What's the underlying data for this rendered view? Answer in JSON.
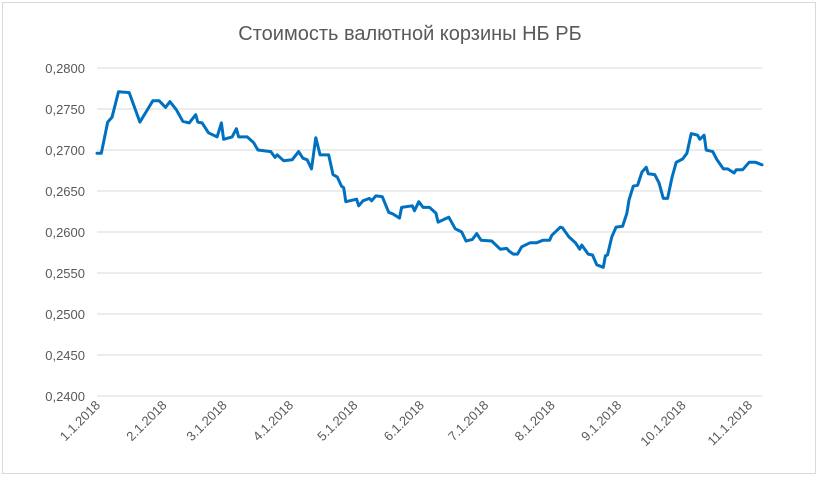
{
  "chart_data": {
    "type": "line",
    "title": "Стоимость валютной корзины НБ РБ",
    "xlabel": "",
    "ylabel": "",
    "ylim": [
      0.24,
      0.28
    ],
    "yticks": [
      "0,2400",
      "0,2450",
      "0,2500",
      "0,2550",
      "0,2600",
      "0,2650",
      "0,2700",
      "0,2750",
      "0,2800"
    ],
    "xticks": [
      {
        "date": "2018-01-01",
        "label": "1.1.2018"
      },
      {
        "date": "2018-02-01",
        "label": "2.1.2018"
      },
      {
        "date": "2018-03-01",
        "label": "3.1.2018"
      },
      {
        "date": "2018-04-01",
        "label": "4.1.2018"
      },
      {
        "date": "2018-05-01",
        "label": "5.1.2018"
      },
      {
        "date": "2018-06-01",
        "label": "6.1.2018"
      },
      {
        "date": "2018-07-01",
        "label": "7.1.2018"
      },
      {
        "date": "2018-08-01",
        "label": "8.1.2018"
      },
      {
        "date": "2018-09-01",
        "label": "9.1.2018"
      },
      {
        "date": "2018-10-01",
        "label": "10.1.2018"
      },
      {
        "date": "2018-11-01",
        "label": "11.1.2018"
      }
    ],
    "grid": true,
    "legend": "none",
    "color": "#0070C0",
    "series": [
      {
        "x": [
          "2018-01-01",
          "2018-01-03",
          "2018-01-06",
          "2018-01-08",
          "2018-01-11",
          "2018-01-16",
          "2018-01-21",
          "2018-01-27",
          "2018-01-30",
          "2018-02-02",
          "2018-02-04",
          "2018-02-07",
          "2018-02-10",
          "2018-02-13",
          "2018-02-16",
          "2018-02-17",
          "2018-02-19",
          "2018-02-22",
          "2018-02-26",
          "2018-02-28",
          "2018-03-01",
          "2018-03-05",
          "2018-03-07",
          "2018-03-08",
          "2018-03-12",
          "2018-03-15",
          "2018-03-17",
          "2018-03-23",
          "2018-03-25",
          "2018-03-26",
          "2018-03-29",
          "2018-04-02",
          "2018-04-05",
          "2018-04-07",
          "2018-04-09",
          "2018-04-11",
          "2018-04-13",
          "2018-04-15",
          "2018-04-19",
          "2018-04-21",
          "2018-04-23",
          "2018-04-25",
          "2018-04-26",
          "2018-04-27",
          "2018-05-02",
          "2018-05-03",
          "2018-05-05",
          "2018-05-08",
          "2018-05-09",
          "2018-05-11",
          "2018-05-14",
          "2018-05-17",
          "2018-05-19",
          "2018-05-22",
          "2018-05-23",
          "2018-05-28",
          "2018-05-29",
          "2018-05-31",
          "2018-06-02",
          "2018-06-05",
          "2018-06-08",
          "2018-06-09",
          "2018-06-13",
          "2018-06-14",
          "2018-06-17",
          "2018-06-20",
          "2018-06-22",
          "2018-06-25",
          "2018-06-27",
          "2018-06-29",
          "2018-07-04",
          "2018-07-08",
          "2018-07-11",
          "2018-07-12",
          "2018-07-14",
          "2018-07-16",
          "2018-07-18",
          "2018-07-22",
          "2018-07-25",
          "2018-07-28",
          "2018-07-31",
          "2018-08-01",
          "2018-08-05",
          "2018-08-06",
          "2018-08-09",
          "2018-08-12",
          "2018-08-14",
          "2018-08-15",
          "2018-08-18",
          "2018-08-20",
          "2018-08-22",
          "2018-08-25",
          "2018-08-26",
          "2018-08-27",
          "2018-08-29",
          "2018-08-31",
          "2018-09-03",
          "2018-09-05",
          "2018-09-06",
          "2018-09-08",
          "2018-09-10",
          "2018-09-12",
          "2018-09-14",
          "2018-09-15",
          "2018-09-18",
          "2018-09-20",
          "2018-09-22",
          "2018-09-24",
          "2018-09-26",
          "2018-09-28",
          "2018-10-01",
          "2018-10-03",
          "2018-10-05",
          "2018-10-08",
          "2018-10-09",
          "2018-10-11",
          "2018-10-12",
          "2018-10-15",
          "2018-10-17",
          "2018-10-20",
          "2018-10-22",
          "2018-10-25",
          "2018-10-26",
          "2018-10-29",
          "2018-11-01",
          "2018-11-04",
          "2018-11-07"
        ],
        "y": [
          0.2696,
          0.2696,
          0.2734,
          0.274,
          0.2771,
          0.277,
          0.2734,
          0.276,
          0.276,
          0.2752,
          0.2759,
          0.2749,
          0.2735,
          0.2733,
          0.2743,
          0.2734,
          0.2733,
          0.2721,
          0.2716,
          0.2733,
          0.2713,
          0.2716,
          0.2726,
          0.2716,
          0.2716,
          0.2709,
          0.27,
          0.2698,
          0.2691,
          0.2694,
          0.2687,
          0.2688,
          0.2698,
          0.269,
          0.2688,
          0.2677,
          0.2715,
          0.2694,
          0.2694,
          0.267,
          0.2667,
          0.2656,
          0.2654,
          0.2637,
          0.264,
          0.2632,
          0.2638,
          0.2641,
          0.2638,
          0.2644,
          0.2643,
          0.2624,
          0.2622,
          0.2617,
          0.263,
          0.2632,
          0.2626,
          0.2637,
          0.263,
          0.263,
          0.2623,
          0.2612,
          0.2617,
          0.2618,
          0.2604,
          0.26,
          0.2589,
          0.2591,
          0.2598,
          0.259,
          0.2589,
          0.2579,
          0.258,
          0.2577,
          0.2573,
          0.2573,
          0.2582,
          0.2587,
          0.2587,
          0.259,
          0.259,
          0.2596,
          0.2606,
          0.2605,
          0.2594,
          0.2587,
          0.2579,
          0.2584,
          0.2573,
          0.2572,
          0.256,
          0.2557,
          0.2571,
          0.2572,
          0.2594,
          0.2606,
          0.2607,
          0.2623,
          0.2639,
          0.2656,
          0.2657,
          0.2673,
          0.2679,
          0.2671,
          0.267,
          0.266,
          0.2641,
          0.2641,
          0.2666,
          0.2685,
          0.2689,
          0.2696,
          0.272,
          0.2718,
          0.2713,
          0.2718,
          0.27,
          0.2698,
          0.2688,
          0.2677,
          0.2677,
          0.2672,
          0.2676,
          0.2676,
          0.2685,
          0.2685,
          0.2682
        ]
      }
    ]
  }
}
